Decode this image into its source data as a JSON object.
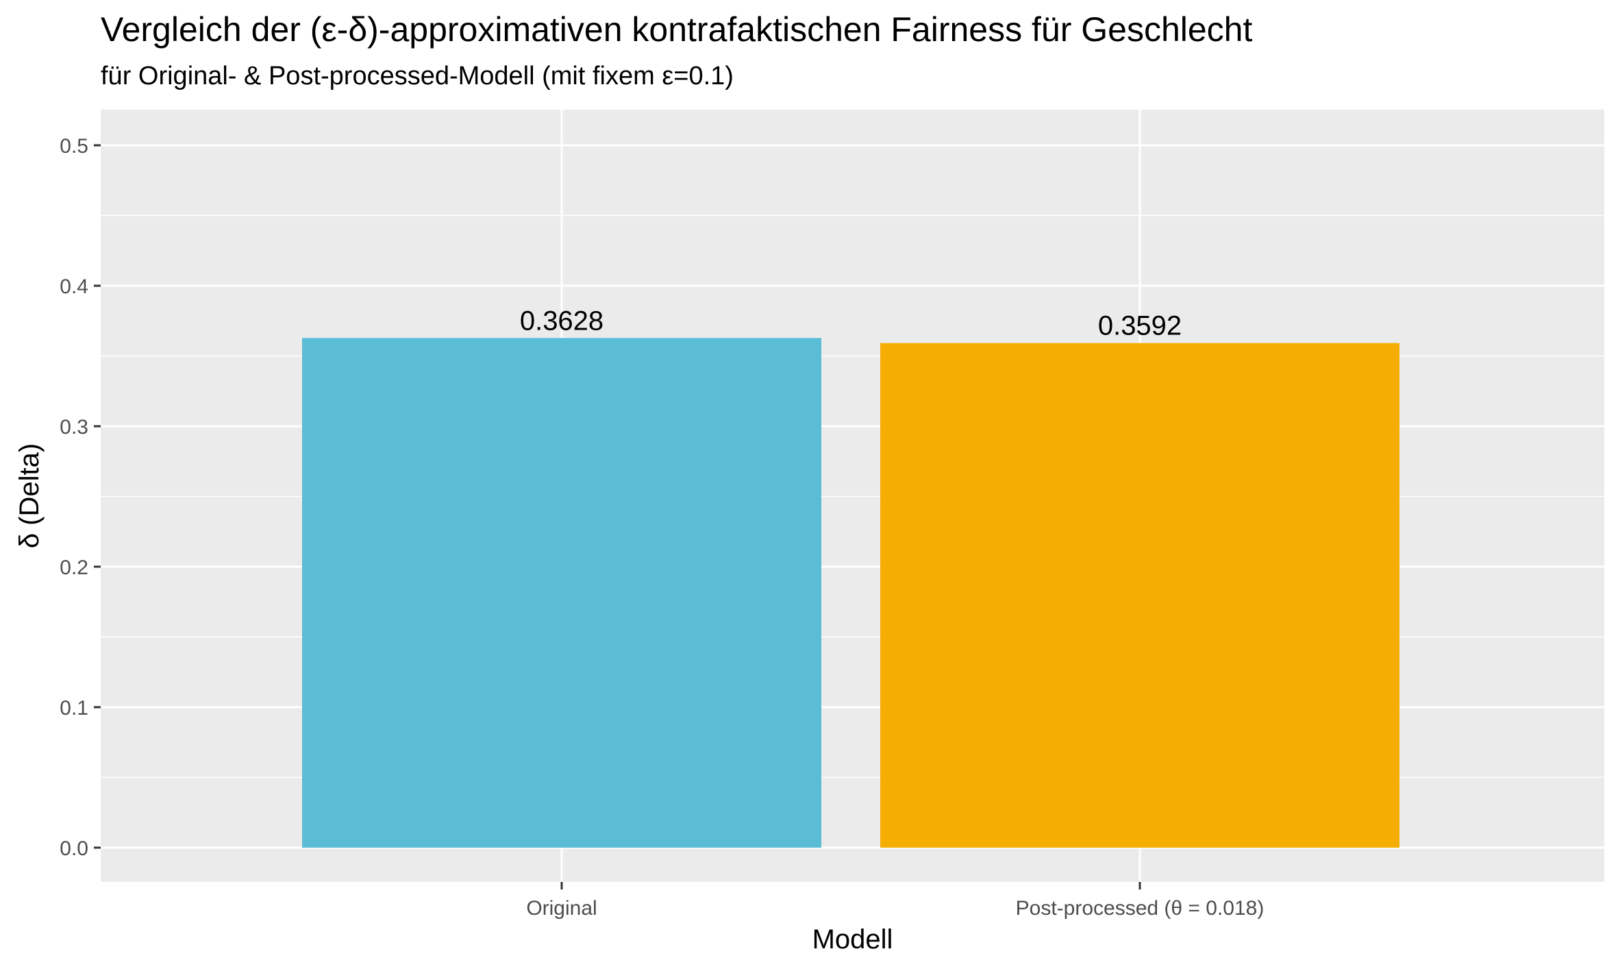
{
  "chart_data": {
    "type": "bar",
    "title": "Vergleich der (ε-δ)-approximativen kontrafaktischen Fairness für Geschlecht",
    "subtitle": "für Original- & Post-processed-Modell (mit fixem ε=0.1)",
    "xlabel": "Modell",
    "ylabel": "δ (Delta)",
    "categories": [
      "Original",
      "Post-processed (θ = 0.018)"
    ],
    "values": [
      0.3628,
      0.3592
    ],
    "data_labels": [
      "0.3628",
      "0.3592"
    ],
    "colors": [
      "#5BBCD6",
      "#F4AD00"
    ],
    "ylim": [
      0,
      0.5
    ],
    "y_ticks": [
      0.0,
      0.1,
      0.2,
      0.3,
      0.4,
      0.5
    ],
    "y_tick_labels": [
      "0.0",
      "0.1",
      "0.2",
      "0.3",
      "0.4",
      "0.5"
    ],
    "grid": true,
    "panel_background": "#EBEBEB",
    "legend": "none"
  }
}
